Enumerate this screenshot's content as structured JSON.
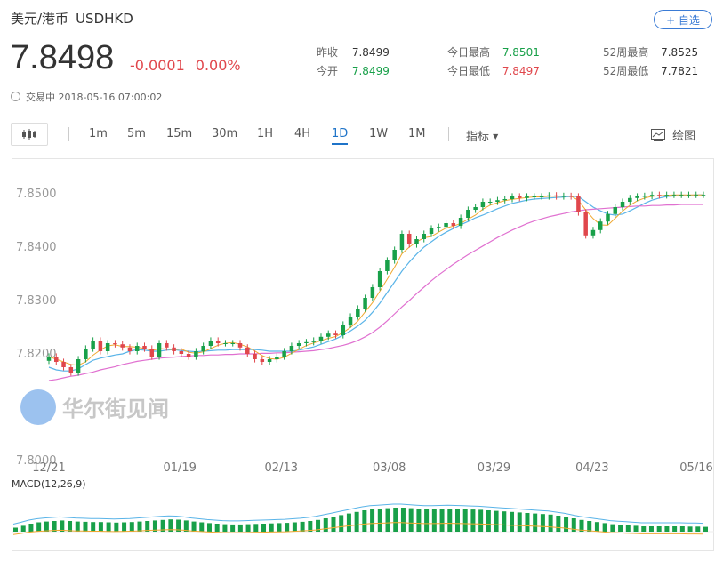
{
  "header": {
    "title": "美元/港币",
    "code": "USDHKD",
    "follow_label": "+ 自选",
    "price": "7.8498",
    "change": "-0.0001",
    "change_pct": "0.00%",
    "status": "交易中 2018-05-16 07:00:02",
    "status_icon": "clock-icon"
  },
  "stats": [
    {
      "label": "昨收",
      "value": "7.8499",
      "color": "#333333"
    },
    {
      "label": "今开",
      "value": "7.8499",
      "color": "#18a049"
    },
    {
      "label": "今日最高",
      "value": "7.8501",
      "color": "#18a049"
    },
    {
      "label": "今日最低",
      "value": "7.8497",
      "color": "#e0474c"
    },
    {
      "label": "52周最高",
      "value": "7.8525",
      "color": "#333333"
    },
    {
      "label": "52周最低",
      "value": "7.7821",
      "color": "#333333"
    }
  ],
  "toolbar": {
    "chart_type_icon": "candlestick-icon",
    "periods": [
      "1m",
      "5m",
      "15m",
      "30m",
      "1H",
      "4H",
      "1D",
      "1W",
      "1M"
    ],
    "active_period": "1D",
    "indicator_label": "指标",
    "draw_label": "绘图",
    "draw_icon": "draw-chart-icon"
  },
  "watermark": "华尔街见闻",
  "colors": {
    "up": "#18a049",
    "down": "#e0474c",
    "accent": "#1e73c8",
    "ma_short": "#f0a830",
    "ma_mid": "#5ab4e8",
    "ma_long": "#e070d0"
  },
  "chart_data": [
    {
      "type": "candlestick",
      "title": "",
      "x_ticks": [
        "12/21",
        "01/19",
        "02/13",
        "03/08",
        "03/29",
        "04/23",
        "05/16"
      ],
      "y_ticks": [
        "7.8500",
        "7.8400",
        "7.8300",
        "7.8200",
        "7.8000"
      ],
      "ylim": [
        7.8,
        7.855
      ],
      "grid": false,
      "series": [
        {
          "values": [
            7.8195,
            7.8185,
            7.8175,
            7.8165,
            7.819,
            7.821,
            7.8225,
            7.8205,
            7.822,
            7.8218,
            7.8212,
            7.8205,
            7.8215,
            7.821,
            7.8195,
            7.822,
            7.8212,
            7.8205,
            7.82,
            7.8195,
            7.8205,
            7.8215,
            7.8225,
            7.822,
            7.822,
            7.822,
            7.8212,
            7.82,
            7.819,
            7.8185,
            7.819,
            7.8195,
            7.8205,
            7.8215,
            7.822,
            7.8222,
            7.8225,
            7.8232,
            7.8238,
            7.8235,
            7.8255,
            7.827,
            7.8285,
            7.8305,
            7.8325,
            7.8355,
            7.8375,
            7.8395,
            7.8425,
            7.8405,
            7.8415,
            7.8425,
            7.8435,
            7.8438,
            7.8445,
            7.844,
            7.8455,
            7.847,
            7.8475,
            7.8485,
            7.8485,
            7.8488,
            7.849,
            7.8495,
            7.8492,
            7.8495,
            7.8495,
            7.8495,
            7.8497,
            7.8495,
            7.8496,
            7.8495,
            7.8465,
            7.8422,
            7.8432,
            7.8448,
            7.8462,
            7.8475,
            7.8485,
            7.8492,
            7.8495,
            7.8496,
            7.8498,
            7.8497,
            7.8498,
            7.8498,
            7.8498,
            7.8498,
            7.8498,
            7.8498
          ]
        },
        {
          "values": [
            7.8175,
            7.817,
            7.8168,
            7.8168,
            7.8172,
            7.818,
            7.8188,
            7.8192,
            7.8195,
            7.8198,
            7.82,
            7.8205,
            7.8208,
            7.8207,
            7.8205,
            7.8205,
            7.8207,
            7.8208,
            7.8206,
            7.8205,
            7.8204,
            7.8205,
            7.8206,
            7.8207,
            7.8207,
            7.8208,
            7.8208,
            7.8208,
            7.8208,
            7.8207,
            7.8205,
            7.8205,
            7.8205,
            7.8205,
            7.8207,
            7.821,
            7.8213,
            7.8218,
            7.8223,
            7.8228,
            7.8235,
            7.8243,
            7.8252,
            7.8263,
            7.8278,
            7.8295,
            7.8315,
            7.8335,
            7.8355,
            7.8372,
            7.8387,
            7.84,
            7.841,
            7.842,
            7.8428,
            7.8435,
            7.8442,
            7.8448,
            7.8455,
            7.846,
            7.8466,
            7.8472,
            7.8477,
            7.8482,
            7.8485,
            7.8488,
            7.849,
            7.8491,
            7.8492,
            7.8493,
            7.8494,
            7.8495,
            7.8495,
            7.8485,
            7.8475,
            7.8468,
            7.8462,
            7.846,
            7.8462,
            7.8468,
            7.8475,
            7.8482,
            7.8488,
            7.8492,
            7.8495,
            7.8496,
            7.8497,
            7.8497,
            7.8498,
            7.8498
          ]
        },
        {
          "values": [
            7.815,
            7.8152,
            7.8155,
            7.8158,
            7.816,
            7.8163,
            7.8166,
            7.817,
            7.8173,
            7.8176,
            7.818,
            7.8183,
            7.8186,
            7.8188,
            7.819,
            7.8192,
            7.8193,
            7.8194,
            7.8195,
            7.8196,
            7.8197,
            7.8197,
            7.8198,
            7.8198,
            7.8199,
            7.8199,
            7.82,
            7.82,
            7.82,
            7.8201,
            7.8201,
            7.8202,
            7.8202,
            7.8203,
            7.8204,
            7.8205,
            7.8206,
            7.8208,
            7.821,
            7.8213,
            7.8216,
            7.822,
            7.8225,
            7.8232,
            7.824,
            7.825,
            7.8262,
            7.8275,
            7.8288,
            7.83,
            7.8313,
            7.8325,
            7.8337,
            7.8348,
            7.8358,
            7.8368,
            7.8377,
            7.8386,
            7.8394,
            7.8402,
            7.841,
            7.8418,
            7.8425,
            7.8432,
            7.8438,
            7.8444,
            7.8449,
            7.8453,
            7.8457,
            7.846,
            7.8463,
            7.8466,
            7.8468,
            7.847,
            7.8471,
            7.8472,
            7.8473,
            7.8474,
            7.8475,
            7.8476,
            7.8477,
            7.8477,
            7.8478,
            7.8478,
            7.8479,
            7.8479,
            7.848,
            7.848,
            7.848,
            7.848
          ]
        }
      ]
    },
    {
      "type": "bar",
      "title": "MACD(12,26,9)",
      "ylim": [
        -1,
        1
      ],
      "values": [
        0.15,
        0.22,
        0.3,
        0.35,
        0.38,
        0.4,
        0.42,
        0.4,
        0.38,
        0.37,
        0.36,
        0.36,
        0.35,
        0.34,
        0.35,
        0.36,
        0.38,
        0.4,
        0.42,
        0.44,
        0.46,
        0.45,
        0.42,
        0.38,
        0.35,
        0.32,
        0.3,
        0.28,
        0.27,
        0.27,
        0.28,
        0.29,
        0.3,
        0.31,
        0.32,
        0.33,
        0.35,
        0.37,
        0.4,
        0.44,
        0.5,
        0.56,
        0.62,
        0.68,
        0.74,
        0.8,
        0.84,
        0.86,
        0.88,
        0.9,
        0.9,
        0.88,
        0.86,
        0.84,
        0.84,
        0.85,
        0.86,
        0.85,
        0.84,
        0.83,
        0.82,
        0.8,
        0.78,
        0.76,
        0.74,
        0.72,
        0.7,
        0.68,
        0.66,
        0.64,
        0.6,
        0.56,
        0.5,
        0.44,
        0.4,
        0.36,
        0.32,
        0.28,
        0.26,
        0.24,
        0.22,
        0.2,
        0.2,
        0.2,
        0.2,
        0.2,
        0.2,
        0.19,
        0.19,
        0.18
      ]
    }
  ]
}
